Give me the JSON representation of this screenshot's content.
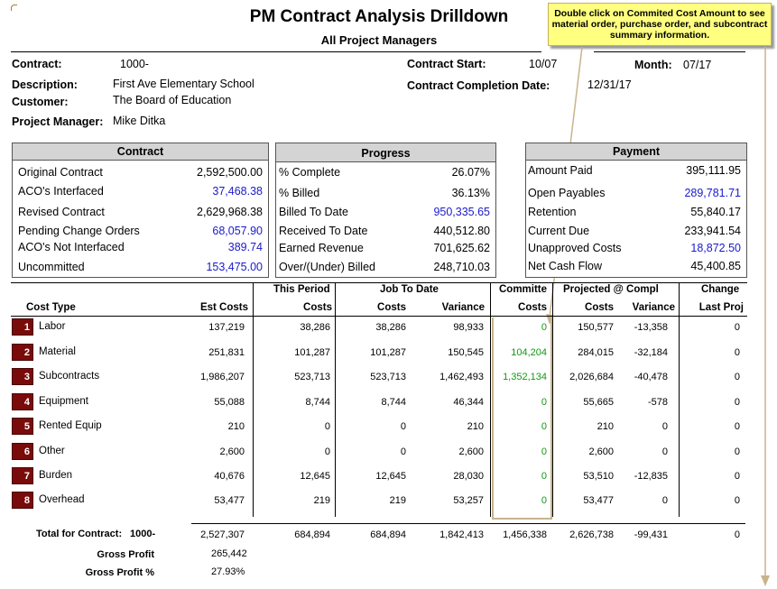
{
  "header": {
    "title": "PM Contract Analysis Drilldown",
    "subtitle": "All Project Managers",
    "callout": "Double click on Commited Cost Amount to see material order, purchase order, and subcontract summary information."
  },
  "info": {
    "contract_label": "Contract:",
    "contract_value": "1000-",
    "description_label": "Description:",
    "description_value": "First Ave Elementary School",
    "customer_label": "Customer:",
    "customer_value": "The Board of Education",
    "pm_label": "Project Manager:",
    "pm_value": "Mike Ditka",
    "start_label": "Contract Start:",
    "start_value": "10/07",
    "month_label": "Month:",
    "month_value": "07/17",
    "completion_label": "Contract Completion Date:",
    "completion_value": "12/31/17"
  },
  "contract_box": {
    "title": "Contract",
    "rows": [
      {
        "label": "Original Contract",
        "value": "2,592,500.00"
      },
      {
        "label": "ACO's Interfaced",
        "value": "37,468.38"
      },
      {
        "label": "Revised Contract",
        "value": "2,629,968.38"
      },
      {
        "label": "Pending Change Orders",
        "value": "68,057.90"
      },
      {
        "label": "ACO's Not Interfaced",
        "value": "389.74"
      },
      {
        "label": "Uncommitted",
        "value": "153,475.00"
      }
    ]
  },
  "progress_box": {
    "title": "Progress",
    "rows": [
      {
        "label": "% Complete",
        "value": "26.07%"
      },
      {
        "label": "% Billed",
        "value": "36.13%"
      },
      {
        "label": "Billed To Date",
        "value": "950,335.65"
      },
      {
        "label": "Received To Date",
        "value": "440,512.80"
      },
      {
        "label": "Earned Revenue",
        "value": "701,625.62"
      },
      {
        "label": "Over/(Under) Billed",
        "value": "248,710.03"
      }
    ]
  },
  "payment_box": {
    "title": "Payment",
    "rows": [
      {
        "label": "Amount Paid",
        "value": "395,111.95"
      },
      {
        "label": "Open Payables",
        "value": "289,781.71"
      },
      {
        "label": "Retention",
        "value": "55,840.17"
      },
      {
        "label": "Current Due",
        "value": "233,941.54"
      },
      {
        "label": "Unapproved Costs",
        "value": "18,872.50"
      },
      {
        "label": "Net Cash Flow",
        "value": "45,400.85"
      }
    ]
  },
  "table": {
    "group_headers": {
      "this_period": "This Period",
      "job_to_date": "Job To Date",
      "committed": "Committe",
      "projected": "Projected @ Compl",
      "change": "Change"
    },
    "columns": {
      "cost_type": "Cost Type",
      "est_costs": "Est Costs",
      "tp_costs": "Costs",
      "jtd_costs": "Costs",
      "jtd_variance": "Variance",
      "committed_costs": "Costs",
      "proj_costs": "Costs",
      "proj_variance": "Variance",
      "last_proj": "Last Proj"
    },
    "rows": [
      {
        "num": "1",
        "type": "Labor",
        "est": "137,219",
        "tp": "38,286",
        "jtd": "38,286",
        "var": "98,933",
        "com": "0",
        "proj": "150,577",
        "pvar": "-13,358",
        "chg": "0"
      },
      {
        "num": "2",
        "type": "Material",
        "est": "251,831",
        "tp": "101,287",
        "jtd": "101,287",
        "var": "150,545",
        "com": "104,204",
        "proj": "284,015",
        "pvar": "-32,184",
        "chg": "0"
      },
      {
        "num": "3",
        "type": "Subcontracts",
        "est": "1,986,207",
        "tp": "523,713",
        "jtd": "523,713",
        "var": "1,462,493",
        "com": "1,352,134",
        "proj": "2,026,684",
        "pvar": "-40,478",
        "chg": "0"
      },
      {
        "num": "4",
        "type": "Equipment",
        "est": "55,088",
        "tp": "8,744",
        "jtd": "8,744",
        "var": "46,344",
        "com": "0",
        "proj": "55,665",
        "pvar": "-578",
        "chg": "0"
      },
      {
        "num": "5",
        "type": "Rented Equip",
        "est": "210",
        "tp": "0",
        "jtd": "0",
        "var": "210",
        "com": "0",
        "proj": "210",
        "pvar": "0",
        "chg": "0"
      },
      {
        "num": "6",
        "type": "Other",
        "est": "2,600",
        "tp": "0",
        "jtd": "0",
        "var": "2,600",
        "com": "0",
        "proj": "2,600",
        "pvar": "0",
        "chg": "0"
      },
      {
        "num": "7",
        "type": "Burden",
        "est": "40,676",
        "tp": "12,645",
        "jtd": "12,645",
        "var": "28,030",
        "com": "0",
        "proj": "53,510",
        "pvar": "-12,835",
        "chg": "0"
      },
      {
        "num": "8",
        "type": "Overhead",
        "est": "53,477",
        "tp": "219",
        "jtd": "219",
        "var": "53,257",
        "com": "0",
        "proj": "53,477",
        "pvar": "0",
        "chg": "0"
      }
    ],
    "total": {
      "label": "Total for Contract:",
      "contract": "1000-",
      "est": "2,527,307",
      "tp": "684,894",
      "jtd": "684,894",
      "var": "1,842,413",
      "com": "1,456,338",
      "proj": "2,626,738",
      "pvar": "-99,431",
      "chg": "0"
    },
    "gross_profit_label": "Gross Profit",
    "gross_profit": "265,442",
    "gross_profit_pct_label": "Gross Profit %",
    "gross_profit_pct": "27.93%"
  }
}
